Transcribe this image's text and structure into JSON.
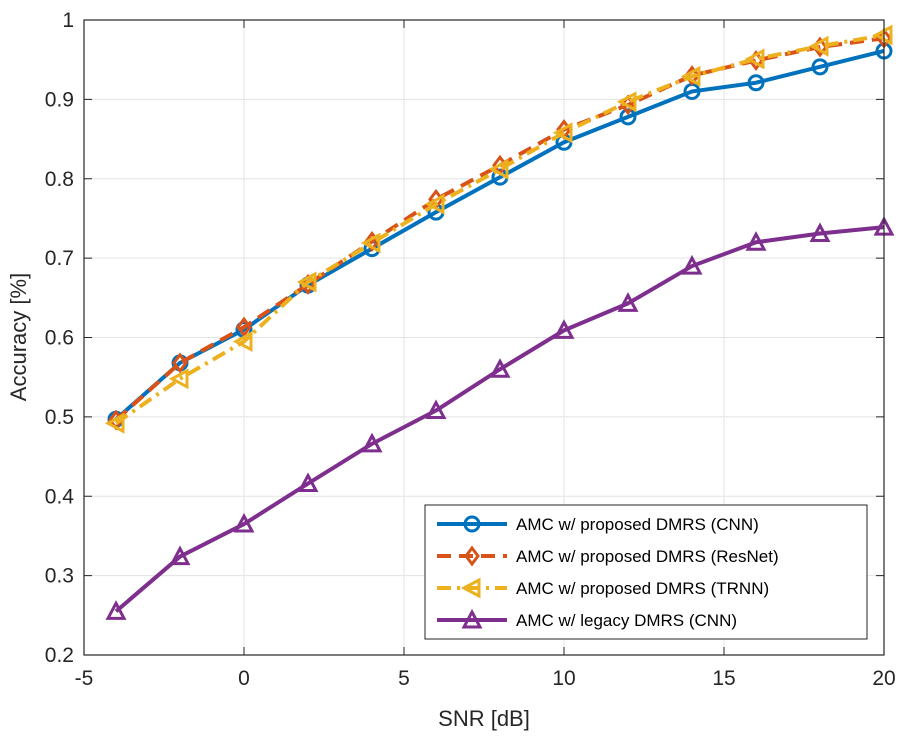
{
  "chart_data": {
    "type": "line",
    "title": "",
    "xlabel": "SNR [dB]",
    "ylabel": "Accuracy [%]",
    "xlim": [
      -5,
      20
    ],
    "ylim": [
      0.2,
      1.0
    ],
    "xticks": [
      -5,
      0,
      5,
      10,
      15,
      20
    ],
    "yticks": [
      0.2,
      0.3,
      0.4,
      0.5,
      0.6,
      0.7,
      0.8,
      0.9,
      1.0
    ],
    "xtick_labels": [
      "-5",
      "0",
      "5",
      "10",
      "15",
      "20"
    ],
    "ytick_labels": [
      "0.2",
      "0.3",
      "0.4",
      "0.5",
      "0.6",
      "0.7",
      "0.8",
      "0.9",
      "1"
    ],
    "grid": true,
    "legend_position": "bottom-right",
    "x": [
      -4,
      -2,
      0,
      2,
      4,
      6,
      8,
      10,
      12,
      14,
      16,
      18,
      20
    ],
    "series": [
      {
        "name": "AMC w/ proposed DMRS (CNN)",
        "color": "#0072BD",
        "line_style": "solid",
        "marker": "circle",
        "values": [
          0.497,
          0.568,
          0.61,
          0.666,
          0.712,
          0.758,
          0.802,
          0.846,
          0.878,
          0.91,
          0.921,
          0.941,
          0.961
        ]
      },
      {
        "name": "AMC w/ proposed DMRS (ResNet)",
        "color": "#D95319",
        "line_style": "dashed",
        "marker": "diamond",
        "values": [
          0.496,
          0.568,
          0.613,
          0.667,
          0.721,
          0.774,
          0.817,
          0.862,
          0.893,
          0.93,
          0.949,
          0.966,
          0.977
        ]
      },
      {
        "name": "AMC w/ proposed DMRS (TRNN)",
        "color": "#EDB120",
        "line_style": "dashdot",
        "marker": "triangle-left",
        "values": [
          0.492,
          0.548,
          0.595,
          0.67,
          0.719,
          0.768,
          0.812,
          0.858,
          0.897,
          0.929,
          0.951,
          0.967,
          0.981
        ]
      },
      {
        "name": "AMC w/ legacy DMRS (CNN)",
        "color": "#7E2F8E",
        "line_style": "solid",
        "marker": "triangle-up",
        "values": [
          0.255,
          0.324,
          0.365,
          0.416,
          0.466,
          0.508,
          0.56,
          0.609,
          0.643,
          0.69,
          0.72,
          0.731,
          0.739
        ]
      }
    ]
  }
}
